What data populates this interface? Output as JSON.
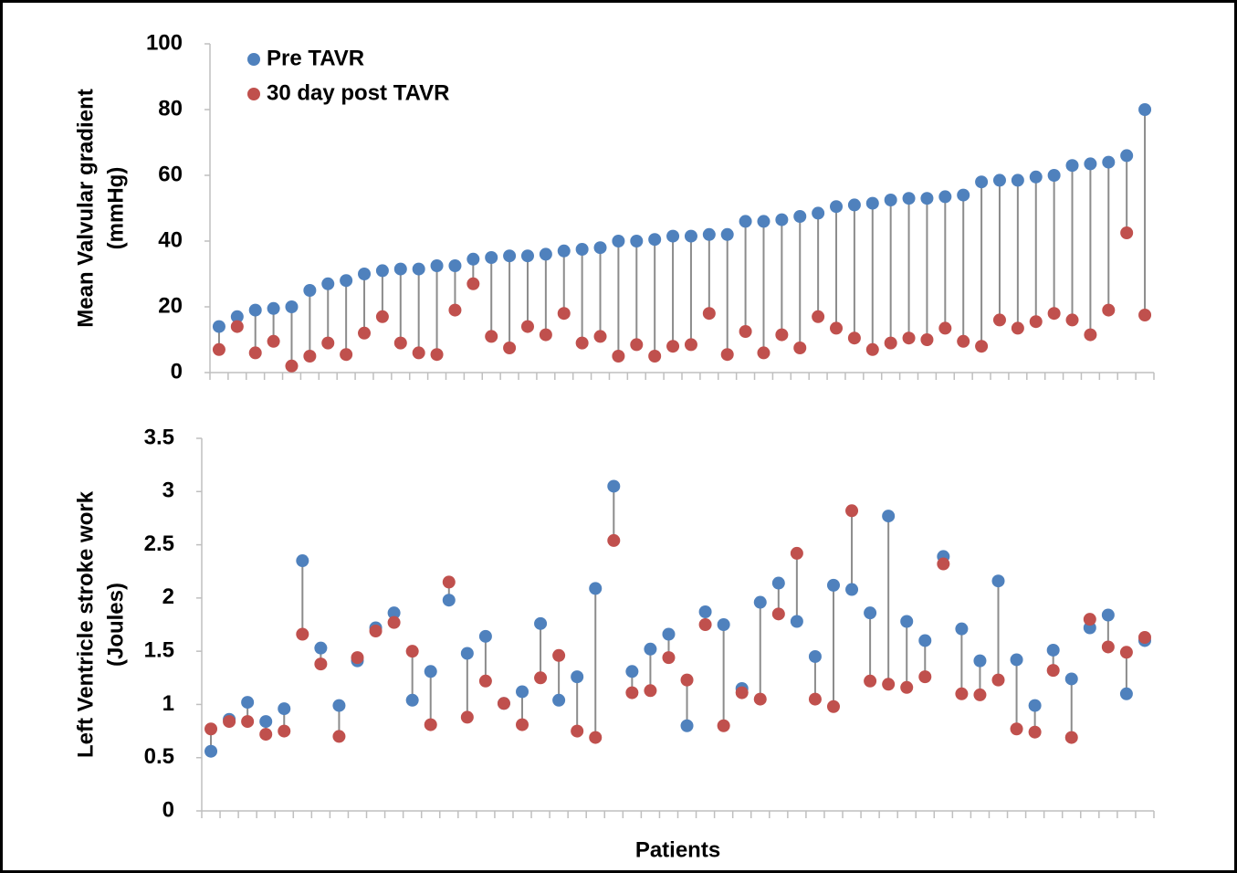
{
  "chart_data": [
    {
      "type": "dumbbell",
      "ylabel": [
        "Mean Valvular gradient",
        "(mmHg)"
      ],
      "ylim": [
        0,
        100
      ],
      "yticks": [
        0,
        20,
        40,
        60,
        80,
        100
      ],
      "legend": "top-left",
      "connector_color": "#8c8c8c",
      "series": [
        {
          "name": "Pre TAVR",
          "color": "#4f81bd",
          "values": [
            14,
            17,
            19,
            19.5,
            20,
            25,
            27,
            28,
            30,
            31,
            31.5,
            31.5,
            32.5,
            32.5,
            34.5,
            35,
            35.5,
            35.5,
            36,
            37,
            37.5,
            38,
            40,
            40,
            40.5,
            41.5,
            41.5,
            42,
            42,
            46,
            46,
            46.5,
            47.5,
            48.5,
            50.5,
            51,
            51.5,
            52.5,
            53,
            53,
            53.5,
            54,
            58,
            58.5,
            58.5,
            59.5,
            60,
            63,
            63.5,
            64,
            66,
            80
          ]
        },
        {
          "name": "30 day post TAVR",
          "color": "#c0504d",
          "values": [
            7,
            14,
            6,
            9.5,
            2,
            5,
            9,
            5.5,
            12,
            17,
            9,
            6,
            5.5,
            19,
            27,
            11,
            7.5,
            14,
            11.5,
            18,
            9,
            11,
            5,
            8.5,
            5,
            8,
            8.5,
            18,
            5.5,
            12.5,
            6,
            11.5,
            7.5,
            17,
            13.5,
            10.5,
            7,
            9,
            10.5,
            10,
            13.5,
            9.5,
            8,
            16,
            13.5,
            15.5,
            18,
            16,
            11.5,
            19,
            42.5,
            17.5
          ]
        }
      ]
    },
    {
      "type": "dumbbell",
      "ylabel": [
        "Left Ventricle stroke work",
        "(Joules)"
      ],
      "xlabel": "Patients",
      "ylim": [
        0,
        3.5
      ],
      "yticks": [
        0,
        0.5,
        1,
        1.5,
        2,
        2.5,
        3,
        3.5
      ],
      "connector_color": "#8c8c8c",
      "series": [
        {
          "name": "Pre TAVR",
          "color": "#4f81bd",
          "values": [
            0.56,
            0.86,
            1.02,
            0.84,
            0.96,
            2.35,
            1.53,
            0.99,
            1.41,
            1.72,
            1.86,
            1.04,
            1.31,
            1.98,
            1.48,
            1.64,
            1.01,
            1.12,
            1.76,
            1.04,
            1.26,
            2.09,
            3.05,
            1.31,
            1.52,
            1.66,
            0.8,
            1.87,
            1.75,
            1.15,
            1.96,
            2.14,
            1.78,
            1.45,
            2.12,
            2.08,
            1.86,
            2.77,
            1.78,
            1.6,
            2.39,
            1.71,
            1.41,
            2.16,
            1.42,
            0.99,
            1.51,
            1.24,
            1.72,
            1.84,
            1.1,
            1.6
          ]
        },
        {
          "name": "30 day post TAVR",
          "color": "#c0504d",
          "values": [
            0.77,
            0.84,
            0.84,
            0.72,
            0.75,
            1.66,
            1.38,
            0.7,
            1.44,
            1.69,
            1.77,
            1.5,
            0.81,
            2.15,
            0.88,
            1.22,
            1.01,
            0.81,
            1.25,
            1.46,
            0.75,
            0.69,
            2.54,
            1.11,
            1.13,
            1.44,
            1.23,
            1.75,
            0.8,
            1.11,
            1.05,
            1.85,
            2.42,
            1.05,
            0.98,
            2.82,
            1.22,
            1.19,
            1.16,
            1.26,
            2.32,
            1.1,
            1.09,
            1.23,
            0.77,
            0.74,
            1.32,
            0.69,
            1.8,
            1.54,
            1.49,
            1.63
          ]
        }
      ]
    }
  ]
}
